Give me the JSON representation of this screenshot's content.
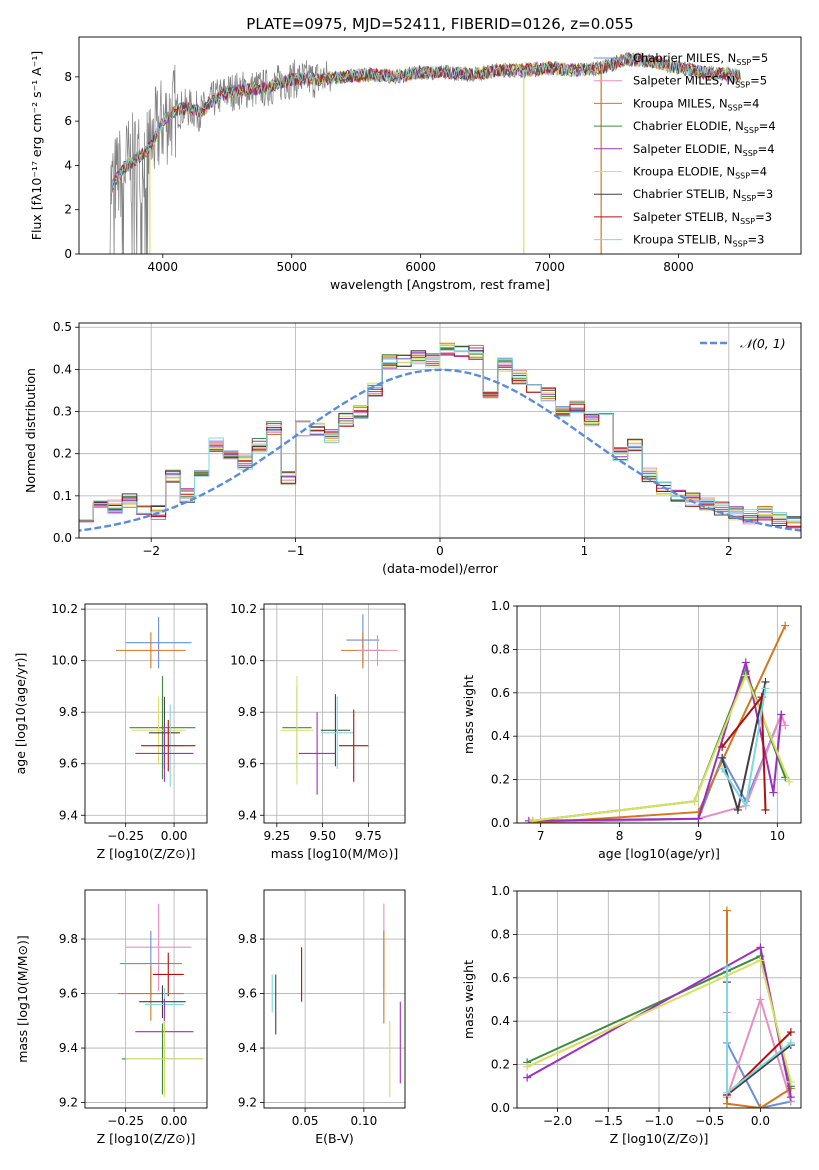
{
  "chart_data": [
    {
      "type": "line",
      "title": "PLATE=0975, MJD=52411, FIBERID=0126, z=0.055",
      "xlabel": "wavelength [Angstrom, rest frame]",
      "ylabel": "Flux [fλ10⁻¹⁷ erg cm⁻² s⁻¹ A⁻¹]",
      "xlim": [
        3350,
        8950
      ],
      "ylim": [
        0,
        9.8
      ],
      "xticks": [
        4000,
        5000,
        6000,
        7000,
        8000
      ],
      "yticks": [
        0,
        2,
        4,
        6,
        8
      ],
      "legend_position": "right",
      "series": [
        {
          "name": "Chabrier MILES, N_SSP=5",
          "color": "#6a8fd8"
        },
        {
          "name": "Salpeter MILES, N_SSP=5",
          "color": "#e88fc0"
        },
        {
          "name": "Kroupa MILES, N_SSP=4",
          "color": "#d2781e"
        },
        {
          "name": "Chabrier ELODIE, N_SSP=4",
          "color": "#3f8a3f"
        },
        {
          "name": "Salpeter ELODIE, N_SSP=4",
          "color": "#9b30c0"
        },
        {
          "name": "Kroupa ELODIE, N_SSP=4",
          "color": "#d8e060"
        },
        {
          "name": "Chabrier STELIB, N_SSP=3",
          "color": "#404040"
        },
        {
          "name": "Salpeter STELIB, N_SSP=3",
          "color": "#b01010"
        },
        {
          "name": "Kroupa STELIB, N_SSP=3",
          "color": "#80d8e0"
        }
      ],
      "continuum": {
        "x": [
          3600,
          3700,
          3800,
          3900,
          4000,
          4100,
          4200,
          4300,
          4400,
          4500,
          4600,
          4800,
          5000,
          5200,
          5400,
          5600,
          5800,
          6000,
          6200,
          6400,
          6600,
          6800,
          7000,
          7200,
          7400,
          7600,
          7800,
          8000,
          8200,
          8400,
          8800
        ],
        "y": [
          3.0,
          3.9,
          4.3,
          4.8,
          6.0,
          6.5,
          6.6,
          6.4,
          7.0,
          7.3,
          7.4,
          7.5,
          7.9,
          7.9,
          8.0,
          8.1,
          8.0,
          8.2,
          8.2,
          8.1,
          8.3,
          8.3,
          8.4,
          8.3,
          8.4,
          8.8,
          8.7,
          8.4,
          8.2,
          8.1,
          7.8
        ]
      }
    },
    {
      "type": "bar",
      "xlabel": "(data-model)/error",
      "ylabel": "Normed distribution",
      "xlim": [
        -2.5,
        2.5
      ],
      "ylim": [
        0,
        0.51
      ],
      "xticks": [
        -2,
        -1,
        0,
        1,
        2
      ],
      "yticks": [
        0.0,
        0.1,
        0.2,
        0.3,
        0.4,
        0.5
      ],
      "legend": "𝒩(0, 1)",
      "gaussian": {
        "mu": 0,
        "sigma": 1,
        "color": "#5b8cdc"
      },
      "histogram_bin_width": 0.1,
      "histogram_values": [
        0.02,
        0.025,
        0.03,
        0.045,
        0.04,
        0.05,
        0.09,
        0.075,
        0.09,
        0.07,
        0.06,
        0.15,
        0.1,
        0.15,
        0.22,
        0.2,
        0.18,
        0.22,
        0.26,
        0.14,
        0.26,
        0.26,
        0.24,
        0.28,
        0.3,
        0.35,
        0.42,
        0.42,
        0.43,
        0.42,
        0.45,
        0.44,
        0.44,
        0.35,
        0.41,
        0.38,
        0.36,
        0.34,
        0.3,
        0.31,
        0.28,
        0.29,
        0.2,
        0.22,
        0.15,
        0.12,
        0.1,
        0.09,
        0.08,
        0.07,
        0.06,
        0.05,
        0.06,
        0.045,
        0.04,
        0.035,
        0.03,
        0.03,
        0.02,
        0.02
      ]
    },
    {
      "type": "scatter",
      "xlabel": "Z [log10(Z/Z⊙)]",
      "ylabel": "age  [log10(age/yr)]",
      "xlim": [
        -0.46,
        0.17
      ],
      "ylim": [
        9.37,
        10.22
      ],
      "xticks": [
        -0.25,
        0.0
      ],
      "xticklabels": [
        "−0.25",
        "0.00"
      ],
      "yticks": [
        9.4,
        9.6,
        9.8,
        10.0,
        10.2
      ],
      "crosses": [
        {
          "x": -0.08,
          "y": 10.07,
          "xerr": 0.17,
          "yerr": 0.1,
          "color": "#6a8fd8"
        },
        {
          "x": -0.12,
          "y": 10.04,
          "xerr": 0.18,
          "yerr": 0.07,
          "color": "#d2781e"
        },
        {
          "x": -0.06,
          "y": 9.74,
          "xerr": 0.17,
          "yerr": 0.2,
          "color": "#3f8a3f"
        },
        {
          "x": -0.08,
          "y": 9.73,
          "xerr": 0.14,
          "yerr": 0.13,
          "color": "#d8e060"
        },
        {
          "x": -0.05,
          "y": 9.72,
          "xerr": 0.08,
          "yerr": 0.14,
          "color": "#404040"
        },
        {
          "x": -0.02,
          "y": 9.67,
          "xerr": 0.07,
          "yerr": 0.16,
          "color": "#80d8e0"
        },
        {
          "x": -0.03,
          "y": 9.67,
          "xerr": 0.14,
          "yerr": 0.1,
          "color": "#b01010"
        },
        {
          "x": -0.05,
          "y": 9.64,
          "xerr": 0.15,
          "yerr": 0.11,
          "color": "#9b30c0"
        }
      ]
    },
    {
      "type": "scatter",
      "xlabel": "mass [log10(M/M⊙)]",
      "ylabel": "",
      "xlim": [
        9.18,
        9.95
      ],
      "ylim": [
        9.37,
        10.22
      ],
      "xticks": [
        9.25,
        9.5,
        9.75
      ],
      "xticklabels": [
        "9.25",
        "9.50",
        "9.75"
      ],
      "yticks": [
        9.4,
        9.6,
        9.8,
        10.0,
        10.2
      ],
      "crosses": [
        {
          "x": 9.72,
          "y": 10.08,
          "xerr": 0.09,
          "yerr": 0.1,
          "color": "#6a8fd8"
        },
        {
          "x": 9.72,
          "y": 10.04,
          "xerr": 0.12,
          "yerr": 0.07,
          "color": "#d2781e"
        },
        {
          "x": 9.8,
          "y": 10.04,
          "xerr": 0.11,
          "yerr": 0.06,
          "color": "#e88fc0"
        },
        {
          "x": 9.36,
          "y": 9.74,
          "xerr": 0.08,
          "yerr": 0.16,
          "color": "#3f8a3f"
        },
        {
          "x": 9.36,
          "y": 9.73,
          "xerr": 0.09,
          "yerr": 0.21,
          "color": "#d8e060"
        },
        {
          "x": 9.57,
          "y": 9.73,
          "xerr": 0.08,
          "yerr": 0.14,
          "color": "#404040"
        },
        {
          "x": 9.58,
          "y": 9.72,
          "xerr": 0.09,
          "yerr": 0.14,
          "color": "#80d8e0"
        },
        {
          "x": 9.67,
          "y": 9.67,
          "xerr": 0.08,
          "yerr": 0.14,
          "color": "#b01010"
        },
        {
          "x": 9.47,
          "y": 9.64,
          "xerr": 0.1,
          "yerr": 0.16,
          "color": "#9b30c0"
        }
      ]
    },
    {
      "type": "line",
      "xlabel": "age  [log10(age/yr)]",
      "ylabel": "mass weight",
      "xlim": [
        6.7,
        10.3
      ],
      "ylim": [
        0,
        1.0
      ],
      "xticks": [
        7,
        8,
        9,
        10
      ],
      "yticks": [
        0.0,
        0.2,
        0.4,
        0.6,
        0.8,
        1.0
      ],
      "series": [
        {
          "color": "#6a8fd8",
          "x": [
            6.9,
            9.0,
            9.3,
            9.6,
            10.05
          ],
          "y": [
            0.0,
            0.02,
            0.3,
            0.1,
            0.5
          ]
        },
        {
          "color": "#e88fc0",
          "x": [
            6.85,
            9.0,
            9.6,
            10.05,
            10.1
          ],
          "y": [
            0.0,
            0.02,
            0.08,
            0.5,
            0.45
          ]
        },
        {
          "color": "#d2781e",
          "x": [
            6.9,
            9.0,
            10.1
          ],
          "y": [
            0.0,
            0.05,
            0.91
          ]
        },
        {
          "color": "#3f8a3f",
          "x": [
            6.9,
            8.95,
            9.6,
            10.1
          ],
          "y": [
            0.01,
            0.1,
            0.7,
            0.21
          ]
        },
        {
          "color": "#9b30c0",
          "x": [
            6.85,
            9.0,
            9.6,
            9.95,
            10.05
          ],
          "y": [
            0.01,
            0.02,
            0.74,
            0.14,
            0.5
          ]
        },
        {
          "color": "#d8e060",
          "x": [
            6.9,
            8.95,
            9.6,
            10.15
          ],
          "y": [
            0.01,
            0.1,
            0.68,
            0.19
          ]
        },
        {
          "color": "#404040",
          "x": [
            9.3,
            9.5,
            9.85
          ],
          "y": [
            0.3,
            0.06,
            0.65
          ]
        },
        {
          "color": "#b01010",
          "x": [
            9.3,
            9.8,
            9.85
          ],
          "y": [
            0.35,
            0.58,
            0.06
          ]
        },
        {
          "color": "#80d8e0",
          "x": [
            9.3,
            9.6,
            9.85
          ],
          "y": [
            0.25,
            0.08,
            0.62
          ]
        }
      ]
    },
    {
      "type": "scatter",
      "xlabel": "Z [log10(Z/Z⊙)]",
      "ylabel": "mass [log10(M/M⊙)]",
      "xlim": [
        -0.46,
        0.17
      ],
      "ylim": [
        9.18,
        9.98
      ],
      "xticks": [
        -0.25,
        0.0
      ],
      "xticklabels": [
        "−0.25",
        "0.00"
      ],
      "yticks": [
        9.2,
        9.4,
        9.6,
        9.8
      ],
      "crosses": [
        {
          "x": -0.08,
          "y": 9.77,
          "xerr": 0.17,
          "yerr": 0.16,
          "color": "#e88fc0"
        },
        {
          "x": -0.12,
          "y": 9.71,
          "xerr": 0.16,
          "yerr": 0.12,
          "color": "#6a8fd8"
        },
        {
          "x": -0.03,
          "y": 9.67,
          "xerr": 0.08,
          "yerr": 0.08,
          "color": "#b01010"
        },
        {
          "x": -0.12,
          "y": 9.6,
          "xerr": 0.17,
          "yerr": 0.1,
          "color": "#d2781e"
        },
        {
          "x": -0.06,
          "y": 9.57,
          "xerr": 0.12,
          "yerr": 0.06,
          "color": "#404040"
        },
        {
          "x": -0.05,
          "y": 9.56,
          "xerr": 0.1,
          "yerr": 0.06,
          "color": "#80d8e0"
        },
        {
          "x": -0.05,
          "y": 9.46,
          "xerr": 0.15,
          "yerr": 0.12,
          "color": "#9b30c0"
        },
        {
          "x": -0.06,
          "y": 9.36,
          "xerr": 0.21,
          "yerr": 0.13,
          "color": "#3f8a3f"
        },
        {
          "x": -0.05,
          "y": 9.36,
          "xerr": 0.2,
          "yerr": 0.14,
          "color": "#d8e060"
        }
      ]
    },
    {
      "type": "scatter",
      "xlabel": "E(B-V)",
      "ylabel": "",
      "xlim": [
        0.015,
        0.135
      ],
      "ylim": [
        9.18,
        9.98
      ],
      "xticks": [
        0.05,
        0.1
      ],
      "xticklabels": [
        "0.05",
        "0.10"
      ],
      "yticks": [
        9.2,
        9.4,
        9.6,
        9.8
      ],
      "errorbars": [
        {
          "x": 0.022,
          "y": 9.6,
          "yerr": 0.07,
          "color": "#80d8e0"
        },
        {
          "x": 0.025,
          "y": 9.56,
          "yerr": 0.11,
          "color": "#404040"
        },
        {
          "x": 0.047,
          "y": 9.67,
          "yerr": 0.1,
          "color": "#b01010"
        },
        {
          "x": 0.117,
          "y": 9.77,
          "yerr": 0.16,
          "color": "#e88fc0"
        },
        {
          "x": 0.117,
          "y": 9.66,
          "yerr": 0.17,
          "color": "#d2781e"
        },
        {
          "x": 0.122,
          "y": 9.36,
          "yerr": 0.14,
          "color": "#d8e060"
        },
        {
          "x": 0.131,
          "y": 9.42,
          "yerr": 0.15,
          "color": "#9b30c0"
        }
      ]
    },
    {
      "type": "line",
      "xlabel": "Z [log10(Z/Z⊙)]",
      "ylabel": "mass weight",
      "xlim": [
        -2.4,
        0.4
      ],
      "ylim": [
        0,
        1.0
      ],
      "xticks": [
        -2.0,
        -1.5,
        -1.0,
        -0.5,
        0.0
      ],
      "xticklabels": [
        "−2.0",
        "−1.5",
        "−1.0",
        "−0.5",
        "0.0"
      ],
      "yticks": [
        0.0,
        0.2,
        0.4,
        0.6,
        0.8,
        1.0
      ],
      "series": [
        {
          "color": "#6a8fd8",
          "x": [
            -0.33,
            -0.33,
            0.0,
            0.3
          ],
          "y": [
            0.63,
            0.3,
            0.0,
            0.03
          ]
        },
        {
          "color": "#e88fc0",
          "x": [
            -0.33,
            -0.33,
            0.0,
            0.3
          ],
          "y": [
            0.44,
            0.05,
            0.5,
            0.03
          ]
        },
        {
          "color": "#d2781e",
          "x": [
            -0.33,
            -0.33,
            0.0,
            0.3
          ],
          "y": [
            0.91,
            0.02,
            0.0,
            0.09
          ]
        },
        {
          "color": "#3f8a3f",
          "x": [
            -2.3,
            0.0,
            0.3
          ],
          "y": [
            0.21,
            0.7,
            0.1
          ]
        },
        {
          "color": "#9b30c0",
          "x": [
            -2.3,
            0.0,
            0.3
          ],
          "y": [
            0.14,
            0.74,
            0.05
          ]
        },
        {
          "color": "#d8e060",
          "x": [
            -2.3,
            0.0,
            0.3
          ],
          "y": [
            0.19,
            0.68,
            0.12
          ]
        },
        {
          "color": "#404040",
          "x": [
            -0.33,
            -0.33,
            0.3
          ],
          "y": [
            0.58,
            0.06,
            0.29
          ]
        },
        {
          "color": "#b01010",
          "x": [
            -0.33,
            0.3
          ],
          "y": [
            0.06,
            0.35
          ]
        },
        {
          "color": "#80d8e0",
          "x": [
            -0.33,
            -0.33,
            0.3
          ],
          "y": [
            0.65,
            0.07,
            0.3
          ]
        }
      ]
    }
  ]
}
